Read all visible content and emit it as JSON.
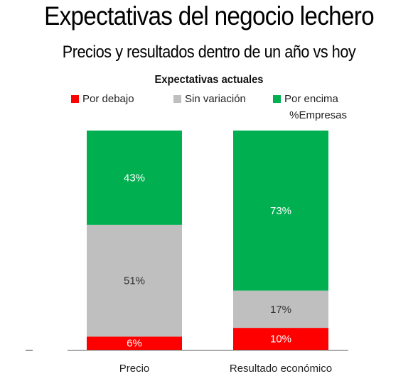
{
  "chart_data": {
    "type": "bar",
    "stacked": true,
    "title": "Expectativas del negocio lechero",
    "subtitle": "Precios y resultados dentro de un año vs hoy",
    "legend_title": "Expectativas actuales",
    "unit_label": "%Empresas",
    "legend_placement": "top",
    "grid": false,
    "categories": [
      "Precio",
      "Resultado económico"
    ],
    "ylim": [
      0,
      100
    ],
    "series": [
      {
        "name": "Por debajo",
        "color": "#ff0000",
        "label_color": "#ffffff",
        "values": [
          6,
          10
        ],
        "labels": [
          "6%",
          "10%"
        ]
      },
      {
        "name": "Sin variación",
        "color": "#bfbfbf",
        "label_color": "#333333",
        "values": [
          51,
          17
        ],
        "labels": [
          "51%",
          "17%"
        ]
      },
      {
        "name": "Por encima",
        "color": "#00b050",
        "label_color": "#ffffff",
        "values": [
          43,
          73
        ],
        "labels": [
          "43%",
          "73%"
        ]
      }
    ]
  }
}
